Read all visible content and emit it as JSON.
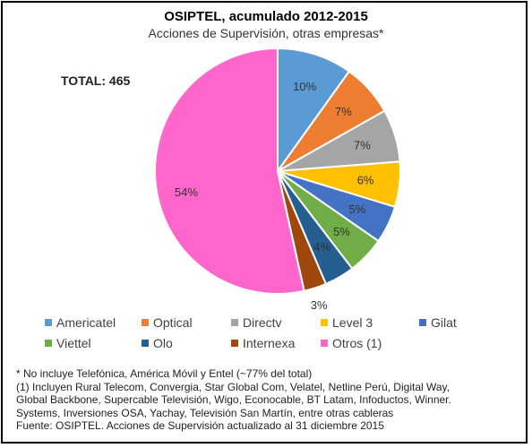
{
  "header": {
    "title": "OSIPTEL, acumulado 2012-2015",
    "subtitle": "Acciones de Supervisión, otras empresas*",
    "total": "TOTAL: 465"
  },
  "chart_data": {
    "type": "pie",
    "title": "OSIPTEL, acumulado 2012-2015",
    "subtitle": "Acciones de Supervisión, otras empresas*",
    "legend_position": "bottom",
    "slices": [
      {
        "label": "Americatel",
        "value": 10,
        "display": "10%",
        "color": "#5B9BD5"
      },
      {
        "label": "Optical",
        "value": 7,
        "display": "7%",
        "color": "#ED7D31"
      },
      {
        "label": "Directv",
        "value": 7,
        "display": "7%",
        "color": "#A5A5A5"
      },
      {
        "label": "Level 3",
        "value": 6,
        "display": "6%",
        "color": "#FFC000"
      },
      {
        "label": "Gilat",
        "value": 5,
        "display": "5%",
        "color": "#4472C4"
      },
      {
        "label": "Viettel",
        "value": 5,
        "display": "5%",
        "color": "#70AD47"
      },
      {
        "label": "Olo",
        "value": 4,
        "display": "4%",
        "color": "#255E91"
      },
      {
        "label": "Internexa",
        "value": 3,
        "display": "3%",
        "color": "#9E480E"
      },
      {
        "label": "Otros (1)",
        "value": 54,
        "display": "54%",
        "color": "#FF66CC"
      }
    ]
  },
  "footnote": {
    "line1": "* No incluye Telefónica,  América Móvil  y Entel (~77% del total)",
    "line2": "(1) Incluyen Rural Telecom, Convergia,  Star Global Com, Velatel, Netline Perú, Digital Way,",
    "line3": "Global Backbone, Supercable Televisión,  Wigo, Econocable, BT Latam, Infoductos, Winner.",
    "line4": "Systems, Inversiones  OSA, Yachay, Televisión  San Martín, entre otras cableras",
    "line5": "Fuente: OSIPTEL.  Acciones de Supervisión  actualizado al 31 diciembre 2015"
  }
}
